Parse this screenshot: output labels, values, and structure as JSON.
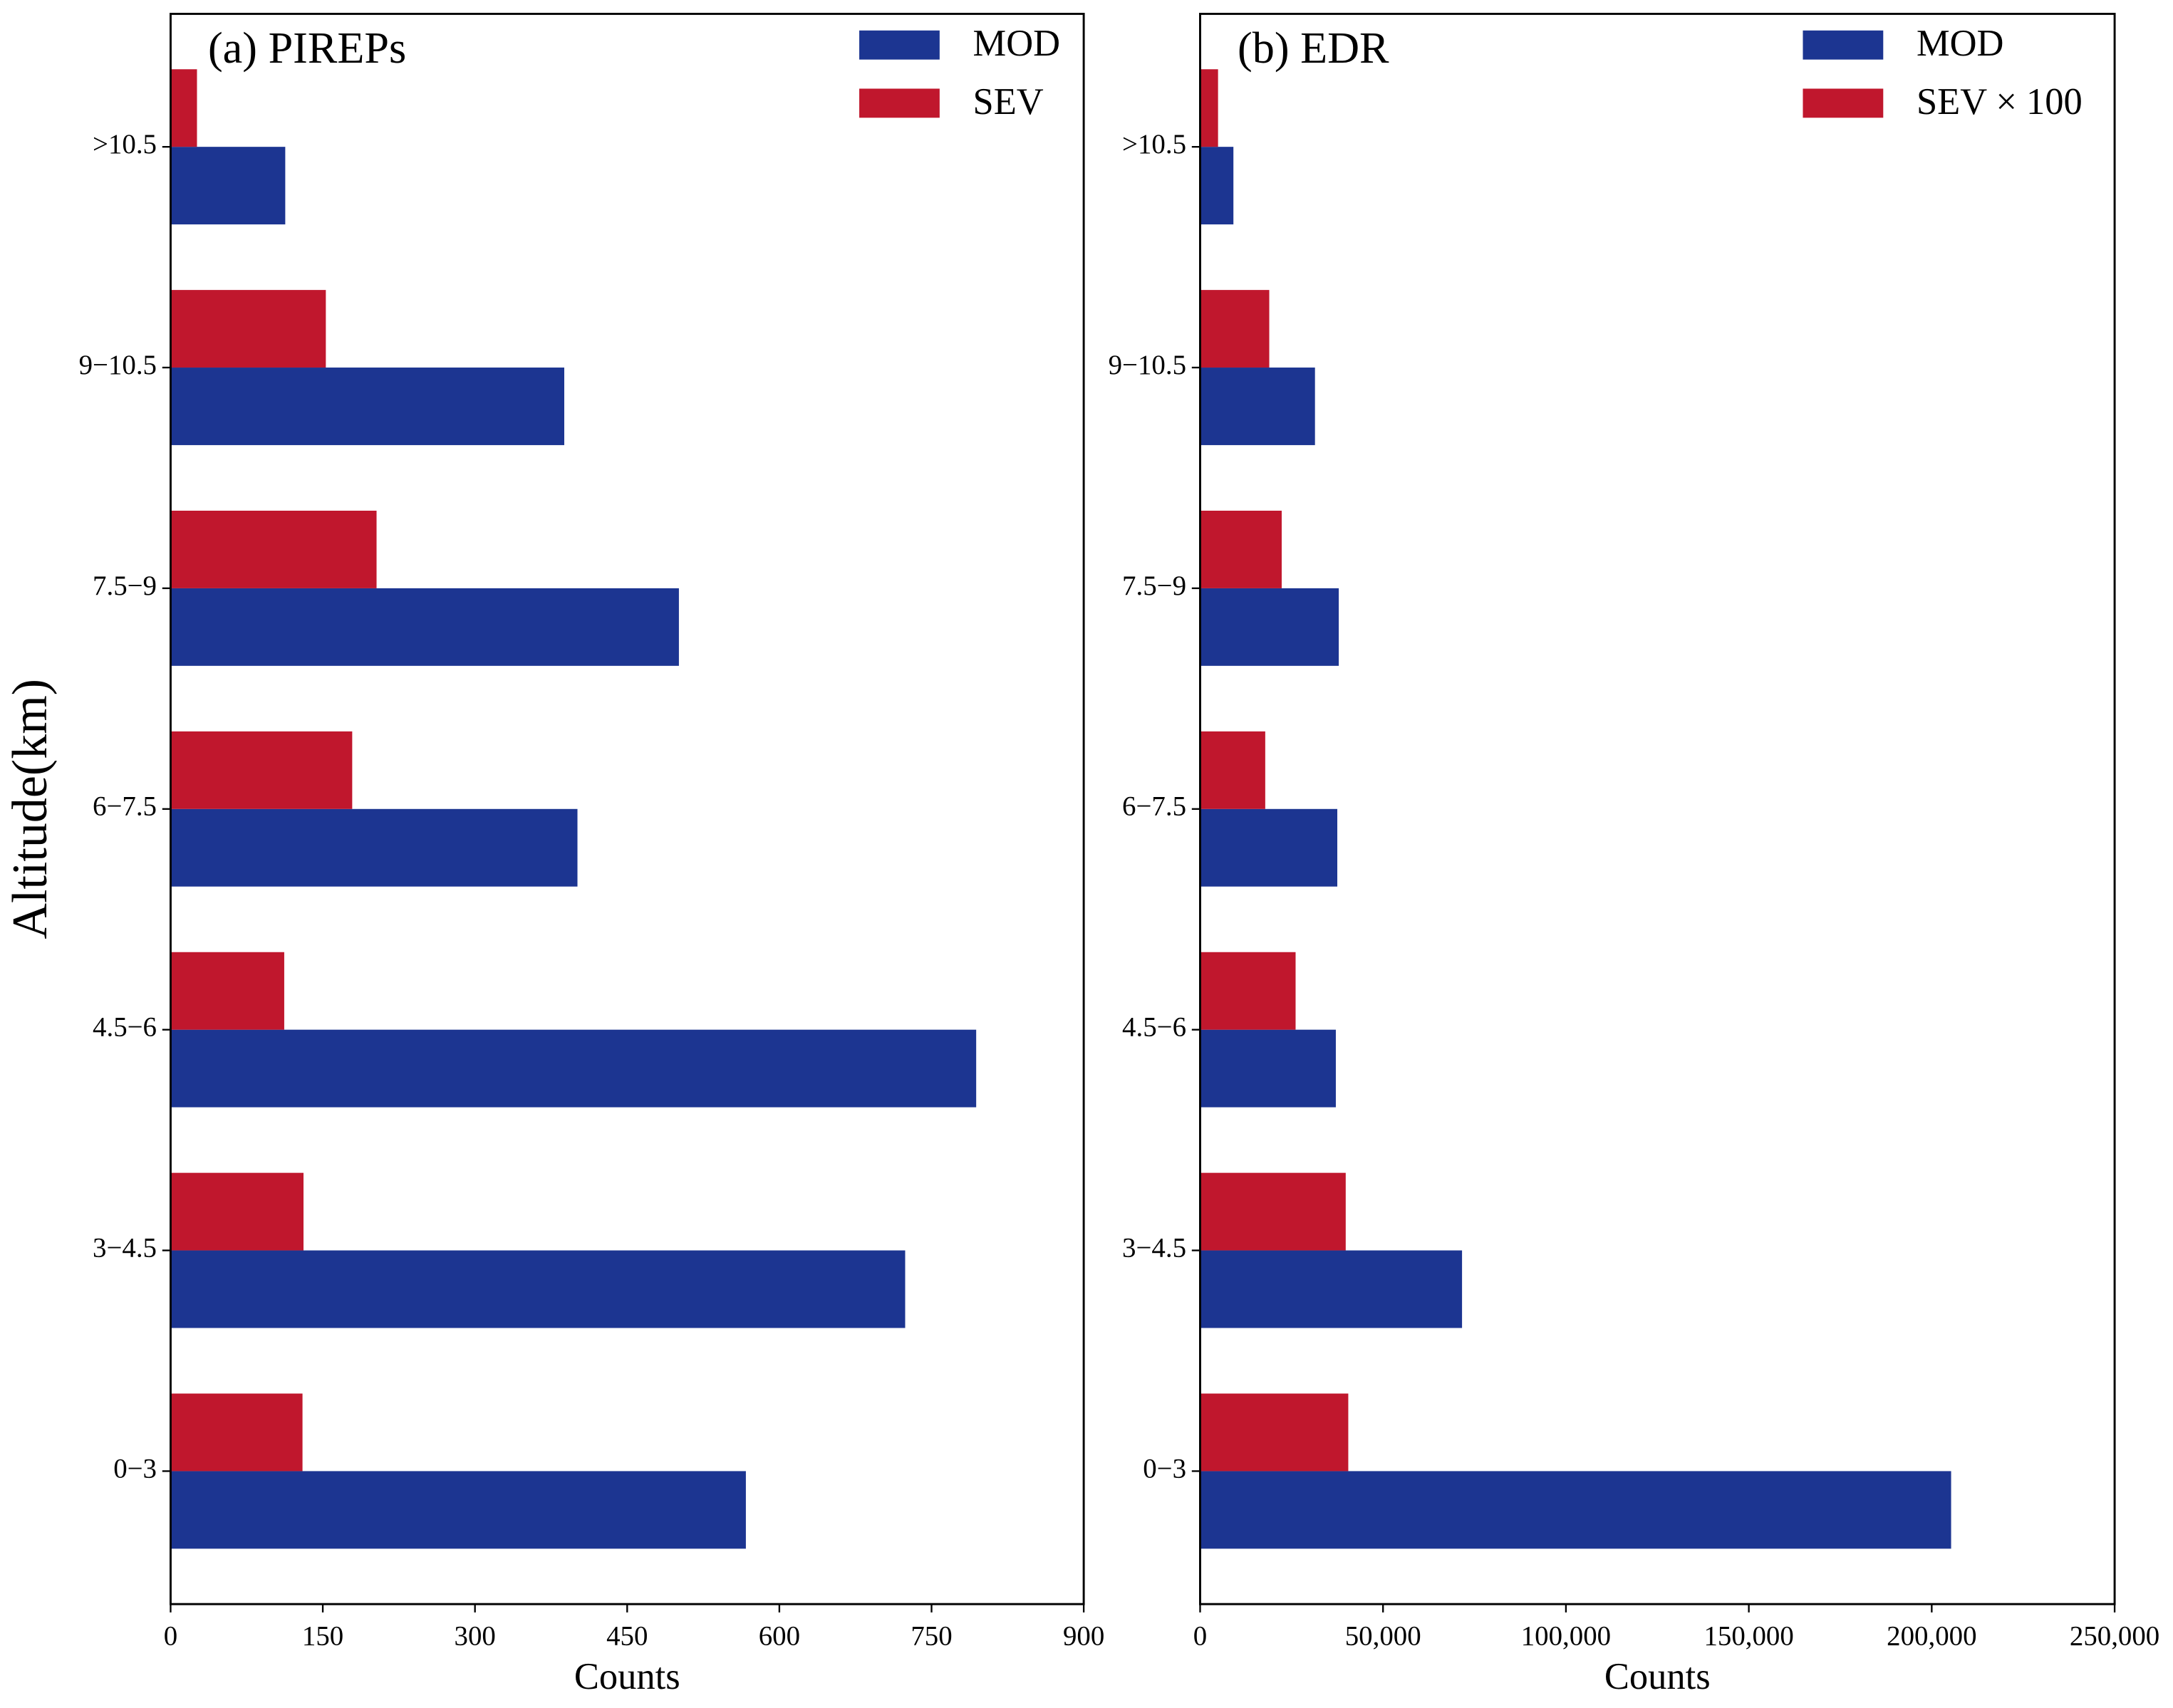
{
  "chart_data": [
    {
      "type": "barh",
      "title": "(a) PIREPs",
      "xlabel": "Counts",
      "ylabel": "Altitude(km)",
      "categories": [
        "0−3",
        "3−4.5",
        "4.5−6",
        "6−7.5",
        "7.5−9",
        "9−10.5",
        ">10.5"
      ],
      "series": [
        {
          "name": "MOD",
          "color": "#1c3591",
          "values": [
            567,
            724,
            794,
            401,
            501,
            388,
            113
          ]
        },
        {
          "name": "SEV",
          "color": "#c0172d",
          "values": [
            130,
            131,
            112,
            179,
            203,
            153,
            26
          ]
        }
      ],
      "xlim": [
        0,
        900
      ],
      "xticks": [
        0,
        150,
        300,
        450,
        600,
        750,
        900
      ],
      "legend": "upper right"
    },
    {
      "type": "barh",
      "title": "(b) EDR",
      "xlabel": "Counts",
      "categories": [
        "0−3",
        "3−4.5",
        "4.5−6",
        "6−7.5",
        "7.5−9",
        "9−10.5",
        ">10.5"
      ],
      "series": [
        {
          "name": "MOD",
          "color": "#1c3591",
          "values": [
            205300,
            71600,
            37100,
            37500,
            37900,
            31400,
            9100
          ]
        },
        {
          "name": "SEV × 100",
          "color": "#c0172d",
          "values": [
            40500,
            39800,
            26100,
            17800,
            22300,
            18900,
            4900
          ]
        }
      ],
      "xlim": [
        0,
        250000
      ],
      "xticks": [
        0,
        {
          "value": 50000,
          "label": "50,000"
        },
        {
          "value": 100000,
          "label": "100,000"
        },
        {
          "value": 150000,
          "label": "150,000"
        },
        {
          "value": 200000,
          "label": "200,000"
        },
        {
          "value": 250000,
          "label": "250,000"
        }
      ],
      "legend": "upper right"
    }
  ]
}
